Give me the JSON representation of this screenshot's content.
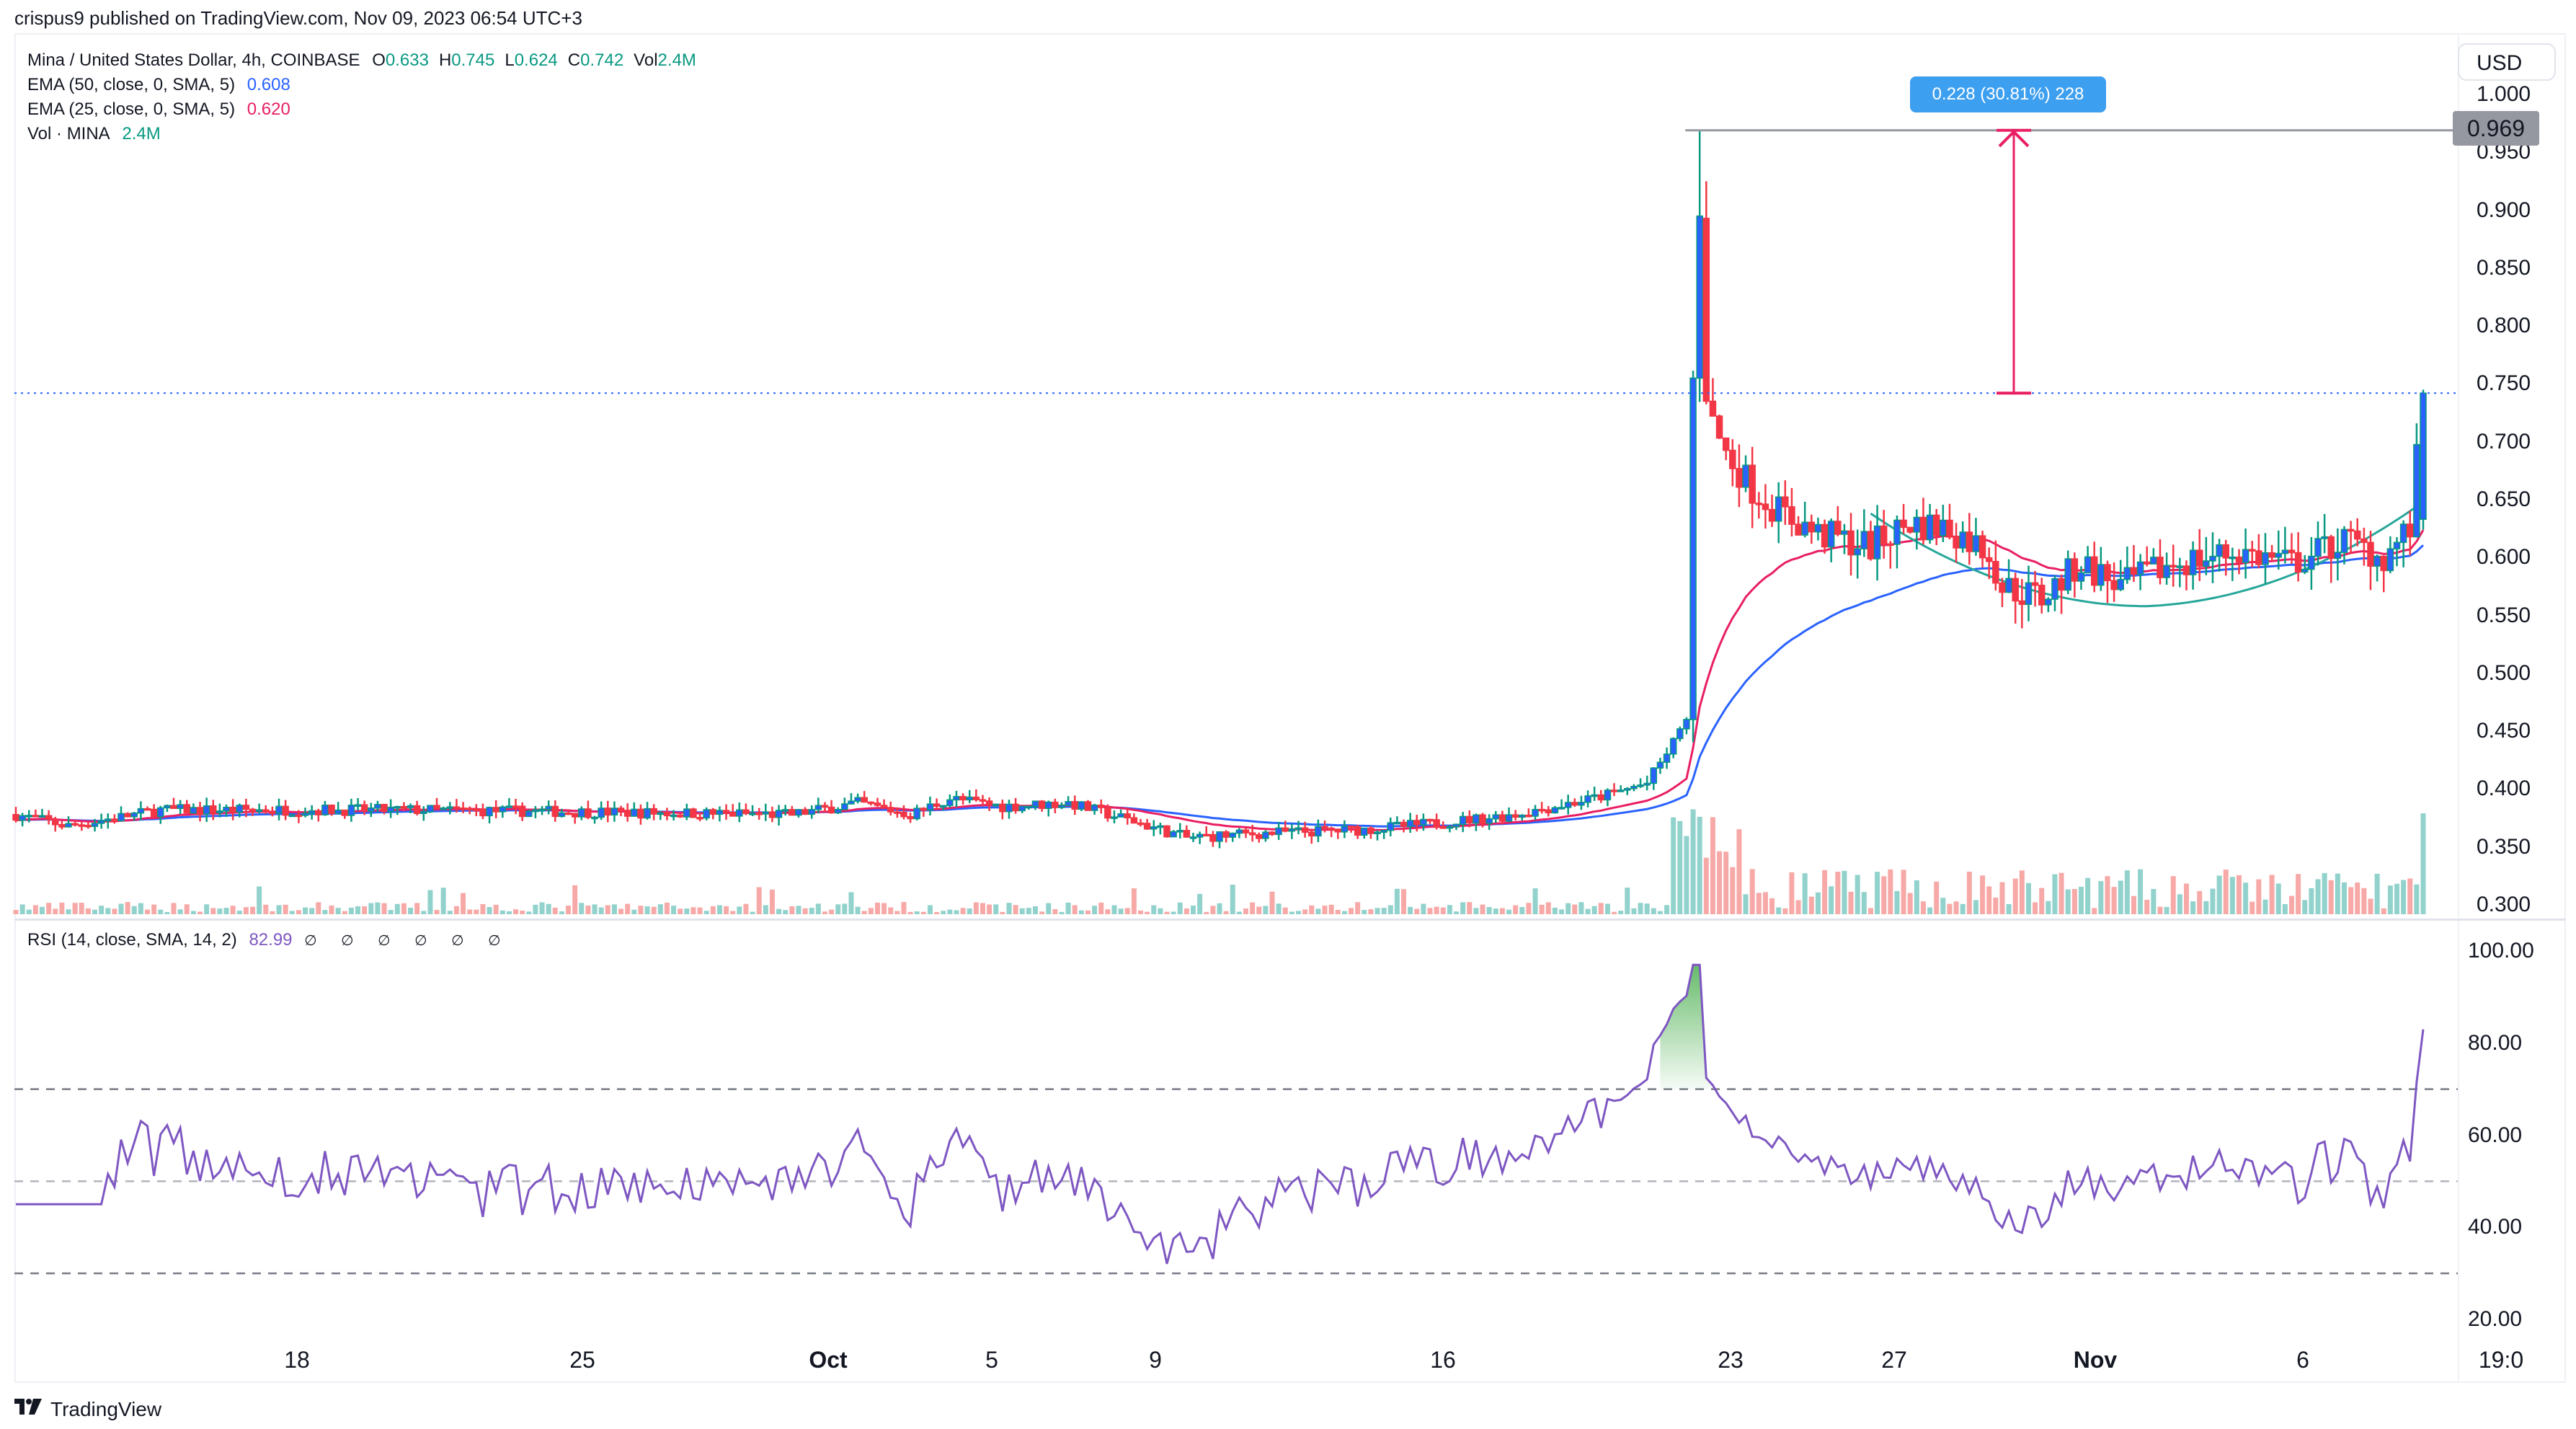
{
  "header": {
    "published_text": "crispus9 published on TradingView.com, Nov 09, 2023 06:54 UTC+3"
  },
  "legend": {
    "symbol_title": "Mina / United States Dollar, 4h, COINBASE",
    "ohlc": [
      {
        "key": "O",
        "value": "0.633"
      },
      {
        "key": "H",
        "value": "0.745"
      },
      {
        "key": "L",
        "value": "0.624"
      },
      {
        "key": "C",
        "value": "0.742"
      },
      {
        "key": "Vol",
        "value": "2.4M"
      }
    ],
    "ema50_label": "EMA (50, close, 0, SMA, 5)",
    "ema50_value": "0.608",
    "ema25_label": "EMA (25, close, 0, SMA, 5)",
    "ema25_value": "0.620",
    "vol_label": "Vol · MINA",
    "vol_value": "2.4M",
    "rsi_label": "RSI (14, close, SMA, 14, 2)",
    "rsi_value": "82.99",
    "rsi_null_values": "∅ ∅ ∅ ∅ ∅ ∅"
  },
  "currency_button": "USD",
  "price_badge": "0.969",
  "measure_label": "0.228 (30.81%) 228",
  "price_axis_ticks": [
    "1.000",
    "0.950",
    "0.900",
    "0.850",
    "0.800",
    "0.750",
    "0.700",
    "0.650",
    "0.600",
    "0.550",
    "0.500",
    "0.450",
    "0.400",
    "0.350",
    "0.300"
  ],
  "rsi_axis_ticks": [
    "100.00",
    "80.00",
    "60.00",
    "40.00",
    "20.00"
  ],
  "x_axis_ticks": [
    {
      "label": "18",
      "x": 412,
      "bold": false
    },
    {
      "label": "25",
      "x": 808,
      "bold": false
    },
    {
      "label": "Oct",
      "x": 1149,
      "bold": true
    },
    {
      "label": "5",
      "x": 1376,
      "bold": false
    },
    {
      "label": "9",
      "x": 1603,
      "bold": false
    },
    {
      "label": "16",
      "x": 2002,
      "bold": false
    },
    {
      "label": "23",
      "x": 2401,
      "bold": false
    },
    {
      "label": "27",
      "x": 2628,
      "bold": false
    },
    {
      "label": "Nov",
      "x": 2907,
      "bold": true
    },
    {
      "label": "6",
      "x": 3195,
      "bold": false
    },
    {
      "label": "19:0",
      "x": 3470,
      "bold": false
    }
  ],
  "footer": {
    "brand": "TradingView",
    "mark": "17"
  },
  "colors": {
    "up_border": "#089981",
    "up_fill": "#2962ff",
    "down": "#f23645",
    "ema50": "#2962ff",
    "ema25": "#e91e63",
    "vol_up": "#92d2cc",
    "vol_down": "#f7a9a7",
    "rsi_line": "#7e57c2",
    "curve": "#26a69a",
    "measure": "#e91e63",
    "last_price_line": "#2962ff"
  },
  "chart_data": [
    {
      "type": "candlestick",
      "title": "Mina / United States Dollar, 4h, COINBASE",
      "ylabel": "USD",
      "ylim": [
        0.29,
        1.01
      ],
      "x_ticks": [
        "18",
        "25",
        "Oct",
        "5",
        "9",
        "16",
        "23",
        "27",
        "Nov",
        "6",
        "19:0"
      ],
      "last": {
        "open": 0.633,
        "high": 0.745,
        "low": 0.624,
        "close": 0.742,
        "volume": "2.4M"
      },
      "peak_high": 0.969,
      "measurement": {
        "from": 0.742,
        "to": 0.969,
        "delta": 0.228,
        "percent": "30.81%",
        "ticks": 228
      },
      "approx_close_path": {
        "x": [
          "Sep 14",
          "Sep 18",
          "Sep 25",
          "Oct 1",
          "Oct 5",
          "Oct 9",
          "Oct 11",
          "Oct 16",
          "Oct 20",
          "Oct 22",
          "Oct 23",
          "Oct 24 (peak)",
          "Oct 25",
          "Oct 27",
          "Oct 30",
          "Nov 1",
          "Nov 3",
          "Nov 6",
          "Nov 8",
          "Nov 9"
        ],
        "close": [
          0.375,
          0.38,
          0.38,
          0.385,
          0.385,
          0.375,
          0.355,
          0.365,
          0.375,
          0.4,
          0.46,
          0.9,
          0.7,
          0.63,
          0.62,
          0.58,
          0.59,
          0.6,
          0.625,
          0.742
        ]
      },
      "series": [
        {
          "name": "EMA (50, close, 0, SMA, 5)",
          "last_value": 0.608,
          "color": "#2962ff"
        },
        {
          "name": "EMA (25, close, 0, SMA, 5)",
          "last_value": 0.62,
          "color": "#e91e63"
        },
        {
          "name": "Vol · MINA",
          "last_value": "2.4M"
        }
      ],
      "annotations": [
        "horizontal line at 0.969",
        "measure arrow 0.742 → 0.969",
        "rounded bottom curve (Oct 27 – Nov 9, low ≈0.558)",
        "dotted last-price line at 0.742"
      ]
    },
    {
      "type": "line",
      "title": "RSI (14, close, SMA, 14, 2)",
      "ylim": [
        15,
        105
      ],
      "levels": [
        30,
        50,
        70
      ],
      "last_value": 82.99,
      "approx_path": {
        "x": [
          "Sep 14",
          "Sep 16",
          "Sep 20",
          "Sep 25",
          "Sep 28",
          "Oct 1",
          "Oct 3",
          "Oct 4",
          "Oct 9",
          "Oct 11",
          "Oct 16",
          "Oct 20",
          "Oct 23",
          "Oct 24",
          "Oct 25",
          "Oct 28",
          "Nov 1",
          "Nov 2",
          "Nov 6",
          "Nov 8",
          "Nov 9"
        ],
        "rsi": [
          45,
          68,
          50,
          52,
          35,
          70,
          28,
          66,
          30,
          25,
          55,
          65,
          72,
          96,
          65,
          50,
          48,
          37,
          60,
          50,
          83
        ]
      }
    }
  ]
}
